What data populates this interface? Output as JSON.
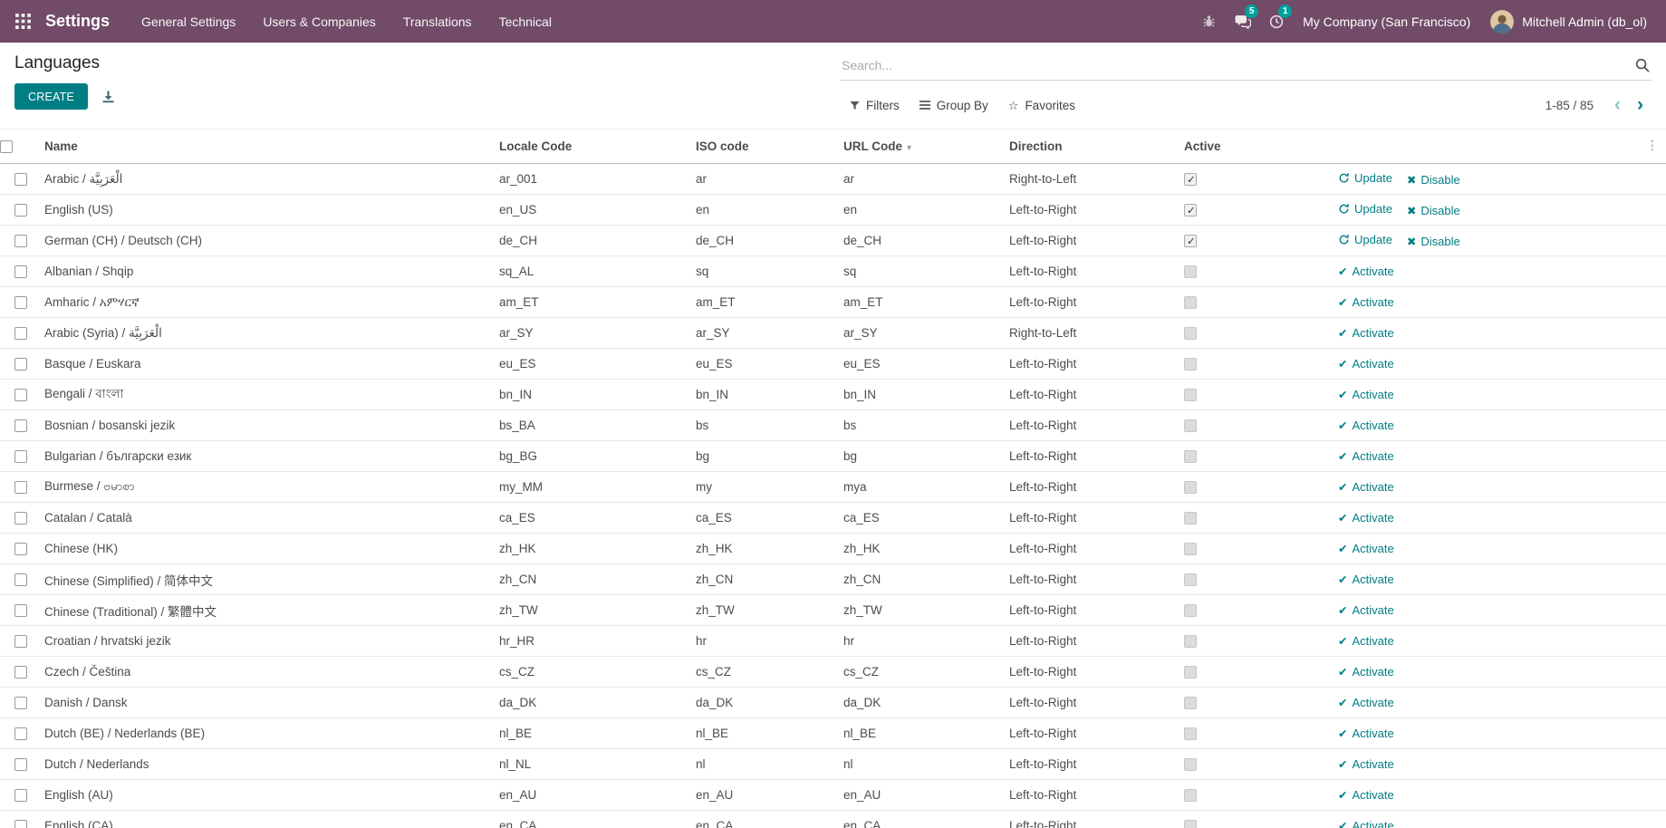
{
  "colors": {
    "navbar_bg": "#714B67",
    "accent": "#017E84",
    "badge_bg": "#00A09D"
  },
  "icons": {
    "apps_grid": "3x3-grid",
    "bug": "bug",
    "messages": "chat-bubbles",
    "activity": "clock",
    "search": "magnifier",
    "export": "download-arrow",
    "filters": "funnel",
    "group_by": "horizontal-bars",
    "favorites_star": "☆",
    "sort_caret": "▾",
    "pager_prev": "‹",
    "pager_next": "›",
    "refresh": "circular-arrow",
    "cross": "✖",
    "check": "✔",
    "options_dots": "⋮"
  },
  "navbar": {
    "app_name": "Settings",
    "menus": [
      {
        "label": "General Settings"
      },
      {
        "label": "Users & Companies"
      },
      {
        "label": "Translations"
      },
      {
        "label": "Technical"
      }
    ],
    "messages_badge": "5",
    "activity_badge": "1",
    "company": "My Company (San Francisco)",
    "user": "Mitchell Admin (db_ol)"
  },
  "control_panel": {
    "title": "Languages",
    "create_label": "CREATE",
    "search_placeholder": "Search...",
    "filters_label": "Filters",
    "group_by_label": "Group By",
    "favorites_label": "Favorites",
    "pager": {
      "text": "1-85 / 85"
    }
  },
  "table": {
    "headers": {
      "name": "Name",
      "locale": "Locale Code",
      "iso": "ISO code",
      "url": "URL Code",
      "direction": "Direction",
      "active": "Active"
    },
    "action_labels": {
      "update": "Update",
      "disable": "Disable",
      "activate": "Activate"
    },
    "rows": [
      {
        "name": "Arabic / الْعَرَبِيَّة",
        "locale_code": "ar_001",
        "iso_code": "ar",
        "url_code": "ar",
        "direction": "Right-to-Left",
        "active": true
      },
      {
        "name": "English (US)",
        "locale_code": "en_US",
        "iso_code": "en",
        "url_code": "en",
        "direction": "Left-to-Right",
        "active": true
      },
      {
        "name": "German (CH) / Deutsch (CH)",
        "locale_code": "de_CH",
        "iso_code": "de_CH",
        "url_code": "de_CH",
        "direction": "Left-to-Right",
        "active": true
      },
      {
        "name": "Albanian / Shqip",
        "locale_code": "sq_AL",
        "iso_code": "sq",
        "url_code": "sq",
        "direction": "Left-to-Right",
        "active": false
      },
      {
        "name": "Amharic / አምሃርኛ",
        "locale_code": "am_ET",
        "iso_code": "am_ET",
        "url_code": "am_ET",
        "direction": "Left-to-Right",
        "active": false
      },
      {
        "name": "Arabic (Syria) / الْعَرَبِيَّة",
        "locale_code": "ar_SY",
        "iso_code": "ar_SY",
        "url_code": "ar_SY",
        "direction": "Right-to-Left",
        "active": false
      },
      {
        "name": "Basque / Euskara",
        "locale_code": "eu_ES",
        "iso_code": "eu_ES",
        "url_code": "eu_ES",
        "direction": "Left-to-Right",
        "active": false
      },
      {
        "name": "Bengali / বাংলা",
        "locale_code": "bn_IN",
        "iso_code": "bn_IN",
        "url_code": "bn_IN",
        "direction": "Left-to-Right",
        "active": false
      },
      {
        "name": "Bosnian / bosanski jezik",
        "locale_code": "bs_BA",
        "iso_code": "bs",
        "url_code": "bs",
        "direction": "Left-to-Right",
        "active": false
      },
      {
        "name": "Bulgarian / български език",
        "locale_code": "bg_BG",
        "iso_code": "bg",
        "url_code": "bg",
        "direction": "Left-to-Right",
        "active": false
      },
      {
        "name": "Burmese / ဗမာစာ",
        "locale_code": "my_MM",
        "iso_code": "my",
        "url_code": "mya",
        "direction": "Left-to-Right",
        "active": false
      },
      {
        "name": "Catalan / Català",
        "locale_code": "ca_ES",
        "iso_code": "ca_ES",
        "url_code": "ca_ES",
        "direction": "Left-to-Right",
        "active": false
      },
      {
        "name": "Chinese (HK)",
        "locale_code": "zh_HK",
        "iso_code": "zh_HK",
        "url_code": "zh_HK",
        "direction": "Left-to-Right",
        "active": false
      },
      {
        "name": "Chinese (Simplified) / 简体中文",
        "locale_code": "zh_CN",
        "iso_code": "zh_CN",
        "url_code": "zh_CN",
        "direction": "Left-to-Right",
        "active": false
      },
      {
        "name": "Chinese (Traditional) / 繁體中文",
        "locale_code": "zh_TW",
        "iso_code": "zh_TW",
        "url_code": "zh_TW",
        "direction": "Left-to-Right",
        "active": false
      },
      {
        "name": "Croatian / hrvatski jezik",
        "locale_code": "hr_HR",
        "iso_code": "hr",
        "url_code": "hr",
        "direction": "Left-to-Right",
        "active": false
      },
      {
        "name": "Czech / Čeština",
        "locale_code": "cs_CZ",
        "iso_code": "cs_CZ",
        "url_code": "cs_CZ",
        "direction": "Left-to-Right",
        "active": false
      },
      {
        "name": "Danish / Dansk",
        "locale_code": "da_DK",
        "iso_code": "da_DK",
        "url_code": "da_DK",
        "direction": "Left-to-Right",
        "active": false
      },
      {
        "name": "Dutch (BE) / Nederlands (BE)",
        "locale_code": "nl_BE",
        "iso_code": "nl_BE",
        "url_code": "nl_BE",
        "direction": "Left-to-Right",
        "active": false
      },
      {
        "name": "Dutch / Nederlands",
        "locale_code": "nl_NL",
        "iso_code": "nl",
        "url_code": "nl",
        "direction": "Left-to-Right",
        "active": false
      },
      {
        "name": "English (AU)",
        "locale_code": "en_AU",
        "iso_code": "en_AU",
        "url_code": "en_AU",
        "direction": "Left-to-Right",
        "active": false
      },
      {
        "name": "English (CA)",
        "locale_code": "en_CA",
        "iso_code": "en_CA",
        "url_code": "en_CA",
        "direction": "Left-to-Right",
        "active": false
      }
    ]
  }
}
